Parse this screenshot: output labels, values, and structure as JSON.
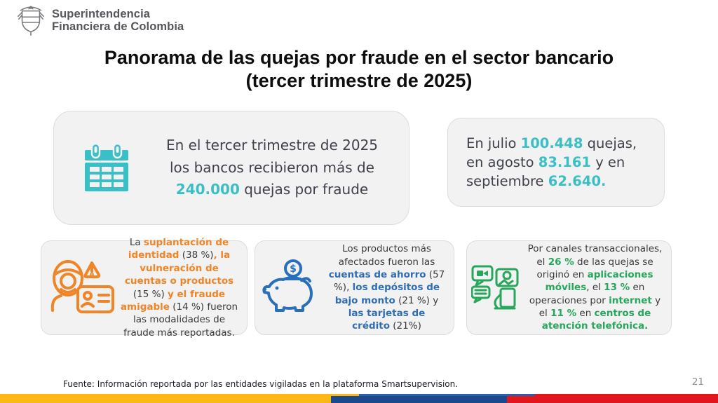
{
  "colors": {
    "teal": "#3BBFC6",
    "orange": "#F08427",
    "blue": "#2F6EB5",
    "green": "#27A75C",
    "card_bg": "#F2F2F2",
    "card_border": "#DCDCDC",
    "dark_text": "#3F414B",
    "title": "#0D0D0D",
    "flag_yellow": "#FDB815",
    "flag_blue": "#1B4A8C",
    "flag_blue2": "#2E5FA8",
    "flag_red": "#E2171E",
    "footer_text": "#1C1C28",
    "page_gray": "#8C8C8C",
    "logo_gray": "#77787B"
  },
  "header": {
    "org_line1": "Superintendencia",
    "org_line2": "Financiera de Colombia"
  },
  "title": {
    "line1": "Panorama de las quejas por fraude en el sector bancario",
    "line2": "(tercer trimestre de 2025)"
  },
  "cards": {
    "quarter": {
      "icon": "calendar-icon",
      "segments": [
        {
          "t": "En el tercer trimestre de 2025 los bancos recibieron más de "
        },
        {
          "t": "240.000",
          "hl": true
        },
        {
          "t": " quejas por fraude"
        }
      ]
    },
    "months": {
      "segments": [
        {
          "t": "En julio "
        },
        {
          "t": "100.448",
          "hl": true
        },
        {
          "t": " quejas, en agosto "
        },
        {
          "t": "83.161",
          "hl": true
        },
        {
          "t": " y en septiembre "
        },
        {
          "t": "62.640.",
          "hl": true
        }
      ]
    },
    "modalities": {
      "icon": "fraudster-id-icon",
      "segments": [
        {
          "t": "La "
        },
        {
          "t": "suplantación de identidad",
          "hl": true
        },
        {
          "t": " (38 %)"
        },
        {
          "t": ", la vulneración de cuentas o productos",
          "hl": true
        },
        {
          "t": " (15 %) "
        },
        {
          "t": "y el fraude amigable",
          "hl": true
        },
        {
          "t": " (14 %) fueron las modalidades de fraude más reportadas."
        }
      ]
    },
    "products": {
      "icon": "piggy-bank-icon",
      "segments": [
        {
          "t": "Los productos más afectados fueron las "
        },
        {
          "t": "cuentas de ahorro",
          "hl": true
        },
        {
          "t": " (57 %), "
        },
        {
          "t": "los depósitos de bajo monto",
          "hl": true
        },
        {
          "t": " (21 %) y "
        },
        {
          "t": "las tarjetas de crédito",
          "hl": true
        },
        {
          "t": " (21%)"
        }
      ]
    },
    "channels": {
      "icon": "devices-social-icon",
      "segments": [
        {
          "t": "Por canales transaccionales, el "
        },
        {
          "t": "26 %",
          "hl": true
        },
        {
          "t": " de las quejas se originó en "
        },
        {
          "t": "aplicaciones móviles",
          "hl": true
        },
        {
          "t": ", el "
        },
        {
          "t": "13 %",
          "hl": true
        },
        {
          "t": " en operaciones por "
        },
        {
          "t": "internet",
          "hl": true
        },
        {
          "t": " y el "
        },
        {
          "t": "11 %",
          "hl": true
        },
        {
          "t": " en "
        },
        {
          "t": "centros de atención telefónica.",
          "hl": true
        }
      ]
    }
  },
  "footer": {
    "source": "Fuente: Información reportada por las entidades vigiladas en la plataforma Smartsupervision.",
    "page_number": "21"
  }
}
